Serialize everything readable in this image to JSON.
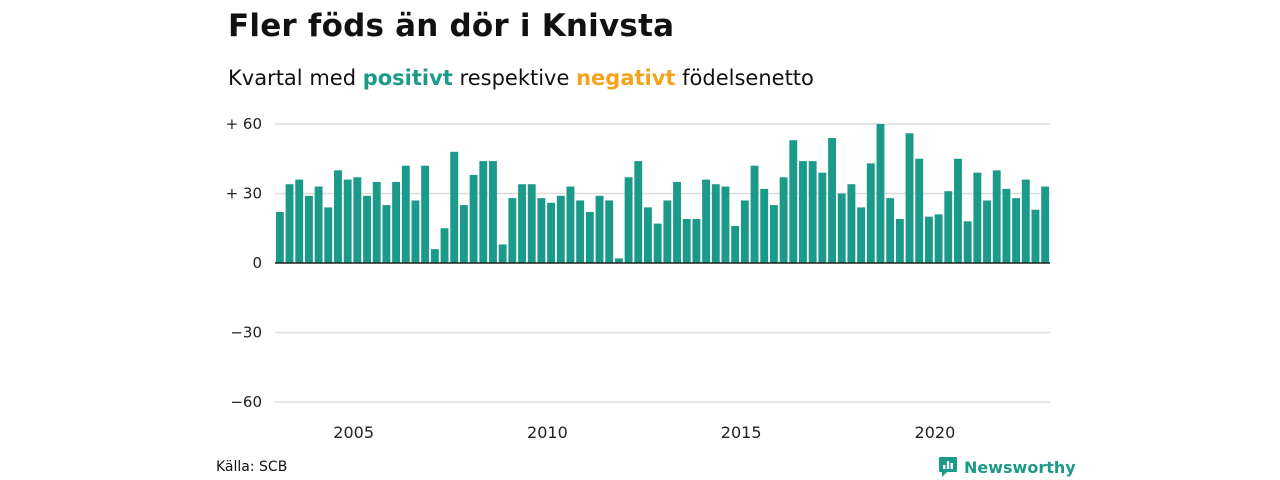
{
  "header": {
    "title": "Fler föds än dör i Knivsta",
    "subtitle_prefix": "Kvartal med",
    "subtitle_positive": "positivt",
    "subtitle_middle": "respektive",
    "subtitle_negative": "negativt",
    "subtitle_suffix": "födelsenetto"
  },
  "footer": {
    "source": "Källa: SCB",
    "brand": "Newsworthy"
  },
  "colors": {
    "positive": "#1b9a8a",
    "negative": "#f5a21b",
    "grid": "#dddddd",
    "zero_line": "#222222"
  },
  "chart_data": {
    "type": "bar",
    "x_start": "2003 Q2",
    "ylim": [
      -66,
      60
    ],
    "y_ticks": [
      {
        "value": 60,
        "label": "+ 60"
      },
      {
        "value": 30,
        "label": "+ 30"
      },
      {
        "value": 0,
        "label": "0"
      },
      {
        "value": -30,
        "label": "−30"
      },
      {
        "value": -60,
        "label": "−60"
      }
    ],
    "x_ticks": [
      "2005",
      "2010",
      "2015",
      "2020"
    ],
    "grid": true,
    "values": [
      22,
      34,
      36,
      29,
      33,
      24,
      40,
      36,
      37,
      29,
      35,
      25,
      35,
      42,
      27,
      42,
      6,
      15,
      48,
      25,
      38,
      44,
      44,
      8,
      28,
      34,
      34,
      28,
      26,
      29,
      33,
      27,
      22,
      29,
      27,
      2,
      37,
      44,
      24,
      17,
      27,
      35,
      19,
      19,
      36,
      34,
      33,
      16,
      27,
      42,
      32,
      25,
      37,
      53,
      44,
      44,
      39,
      54,
      30,
      34,
      24,
      43,
      60,
      28,
      19,
      56,
      45,
      20,
      21,
      31,
      45,
      18,
      39,
      27,
      40,
      32,
      28,
      36,
      23,
      33
    ]
  }
}
